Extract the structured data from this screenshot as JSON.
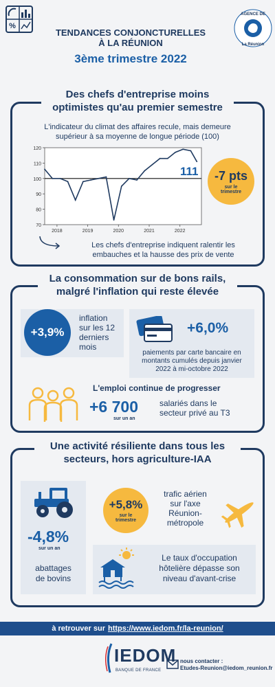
{
  "header": {
    "title_line1": "TENDANCES CONJONCTURELLES",
    "title_line2": "À LA RÉUNION",
    "subtitle": "3ème trimestre 2022",
    "badge_top": "AGENCE DE",
    "badge_bottom": "La Réunion",
    "icon": "chart-percent-icon"
  },
  "section1": {
    "title_line1": "Des chefs d'entreprise moins",
    "title_line2": "optimistes qu'au premier semestre",
    "intro_line1": "L'indicateur du climat des affaires recule, mais demeure",
    "intro_line2": "supérieur à sa moyenne de longue période (100)",
    "last_value_label": "111",
    "change_value": "-7 pts",
    "change_caption_line1": "sur le",
    "change_caption_line2": "trimestre",
    "note_line1": "Les chefs d'entreprise indiquent ralentir les",
    "note_line2": "embauches et la hausse des prix de vente",
    "arrow_icon": "curved-arrow-icon"
  },
  "chart_data": {
    "type": "line",
    "title": "",
    "xlabel": "",
    "ylabel": "",
    "ylim": [
      70,
      120
    ],
    "yticks": [
      70,
      80,
      90,
      100,
      110,
      120
    ],
    "xticks": [
      "2018",
      "2019",
      "2020",
      "2021",
      "2022"
    ],
    "reference_line": 100,
    "grid": false,
    "series": [
      {
        "x": [
          2017.6,
          2017.85,
          2018.1,
          2018.35,
          2018.6,
          2018.85,
          2019.1,
          2019.35,
          2019.6,
          2019.85,
          2020.1,
          2020.35,
          2020.6,
          2020.85,
          2021.1,
          2021.35,
          2021.6,
          2021.85,
          2022.1,
          2022.35,
          2022.55
        ],
        "values": [
          106,
          100,
          100,
          98,
          86,
          98,
          99,
          100,
          101,
          73,
          95,
          100,
          99,
          105,
          109,
          113,
          113,
          117,
          119,
          118,
          111
        ]
      }
    ]
  },
  "section2": {
    "title_line1": "La consommation sur de bons rails,",
    "title_line2": "malgré l'inflation qui reste élevée",
    "inflation_value": "+3,9%",
    "inflation_text_lines": [
      "inflation",
      "sur les 12",
      "derniers",
      "mois"
    ],
    "card_value": "+6,0%",
    "card_text_lines": [
      "paiements par carte bancaire en",
      "montants cumulés depuis janvier",
      "2022 à mi-octobre 2022"
    ],
    "employment_heading": "L'emploi continue de progresser",
    "employment_value": "+6 700",
    "employment_caption": "sur un an",
    "employment_text_lines": [
      "salariés dans le",
      "secteur privé au T3"
    ],
    "card_icon": "credit-cards-icon",
    "people_icon": "people-group-icon"
  },
  "section3": {
    "title_line1": "Une activité résiliente dans tous les",
    "title_line2": "secteurs, hors agriculture-IAA",
    "tractor_value": "-4,8%",
    "tractor_caption": "sur un an",
    "tractor_text_lines": [
      "abattages",
      "de bovins"
    ],
    "air_value": "+5,8%",
    "air_caption_line1": "sur le",
    "air_caption_line2": "trimestre",
    "air_text_lines": [
      "trafic aérien",
      "sur l'axe",
      "Réunion-",
      "métropole"
    ],
    "hotel_text_lines": [
      "Le taux d'occupation",
      "hôtelière dépasse son",
      "niveau d'avant-crise"
    ],
    "tractor_icon": "tractor-icon",
    "plane_icon": "airplane-icon",
    "hotel_icon": "beach-hotel-icon"
  },
  "footer": {
    "prefix": "à retrouver sur",
    "link": "https://www.iedom.fr/la-reunion/",
    "logo_text": "IEDOM",
    "logo_sub": "BANQUE DE FRANCE",
    "contact_label": "nous contacter :",
    "contact_email": "Etudes-Reunion@iedom_reunion.fr",
    "mail_icon": "envelope-icon",
    "colors": {
      "navy": "#1f3a60",
      "blue": "#1b5fa6",
      "yellow": "#f6b93f",
      "card": "#e4e9f0"
    }
  }
}
